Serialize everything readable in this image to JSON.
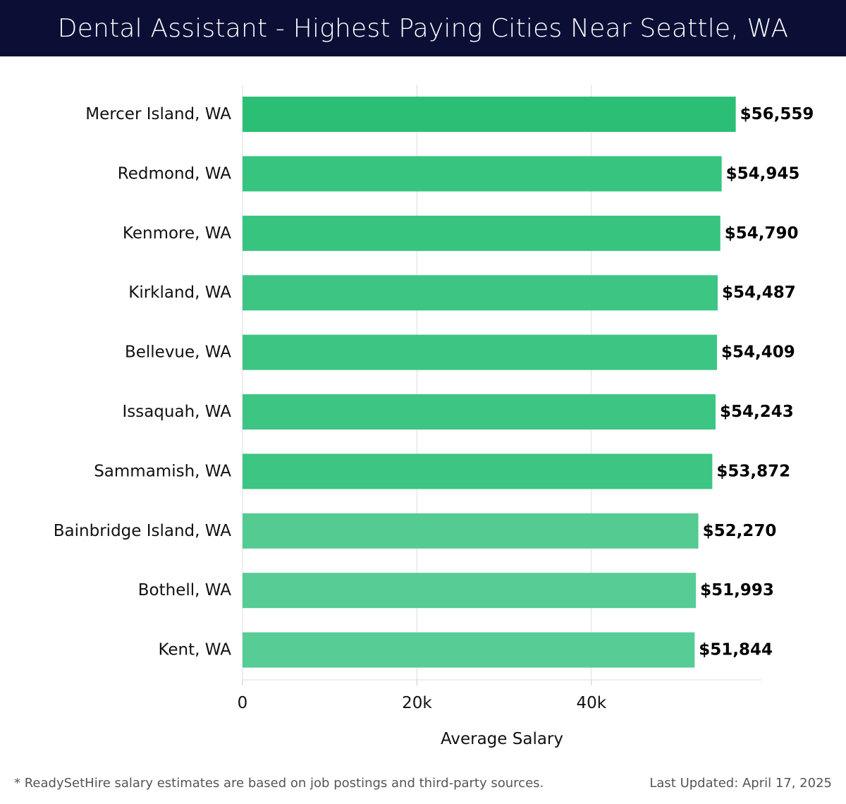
{
  "header": {
    "title": "Dental Assistant - Highest Paying Cities Near Seattle, WA"
  },
  "footer": {
    "note": "* ReadySetHire salary estimates are based on job postings and third-party sources.",
    "updated": "Last Updated: April 17, 2025"
  },
  "colors": {
    "header_bg": "#0c0f35",
    "bar_colors": [
      "#2bbf76",
      "#37c47f",
      "#37c47f",
      "#3cc583",
      "#3cc583",
      "#3cc583",
      "#3cc583",
      "#54cb91",
      "#57cc95",
      "#57cc95"
    ],
    "grid": "#dddddd",
    "label_text": "#111111"
  },
  "chart_data": {
    "type": "bar",
    "orientation": "horizontal",
    "title": "Dental Assistant - Highest Paying Cities Near Seattle, WA",
    "xlabel": "Average Salary",
    "ylabel": "",
    "xlim": [
      0,
      59500
    ],
    "xticks": [
      0,
      20000,
      40000
    ],
    "xtick_labels": [
      "0",
      "20k",
      "40k"
    ],
    "grid": true,
    "categories": [
      "Mercer Island, WA",
      "Redmond, WA",
      "Kenmore, WA",
      "Kirkland, WA",
      "Bellevue, WA",
      "Issaquah, WA",
      "Sammamish, WA",
      "Bainbridge Island, WA",
      "Bothell, WA",
      "Kent, WA"
    ],
    "values": [
      56559,
      54945,
      54790,
      54487,
      54409,
      54243,
      53872,
      52270,
      51993,
      51844
    ],
    "value_labels": [
      "$56,559",
      "$54,945",
      "$54,790",
      "$54,487",
      "$54,409",
      "$54,243",
      "$53,872",
      "$52,270",
      "$51,993",
      "$51,844"
    ]
  }
}
